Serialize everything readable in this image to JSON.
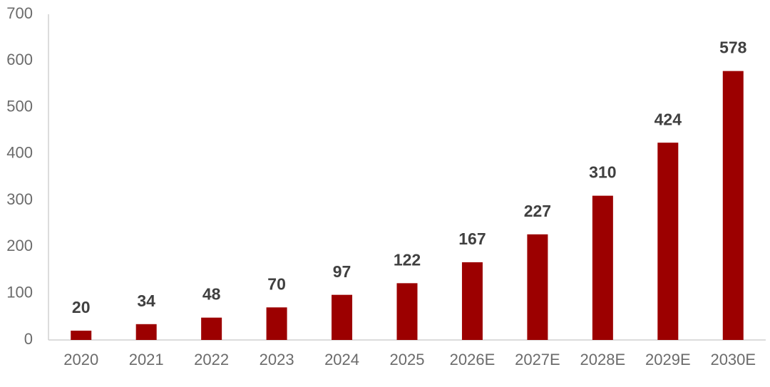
{
  "chart_data": {
    "type": "bar",
    "categories": [
      "2020",
      "2021",
      "2022",
      "2023",
      "2024",
      "2025",
      "2026E",
      "2027E",
      "2028E",
      "2029E",
      "2030E"
    ],
    "values": [
      20,
      34,
      48,
      70,
      97,
      122,
      167,
      227,
      310,
      424,
      578
    ],
    "color": "#9c0000",
    "ylim": [
      0,
      700
    ],
    "yticks": [
      0,
      100,
      200,
      300,
      400,
      500,
      600,
      700
    ],
    "grid": false
  }
}
